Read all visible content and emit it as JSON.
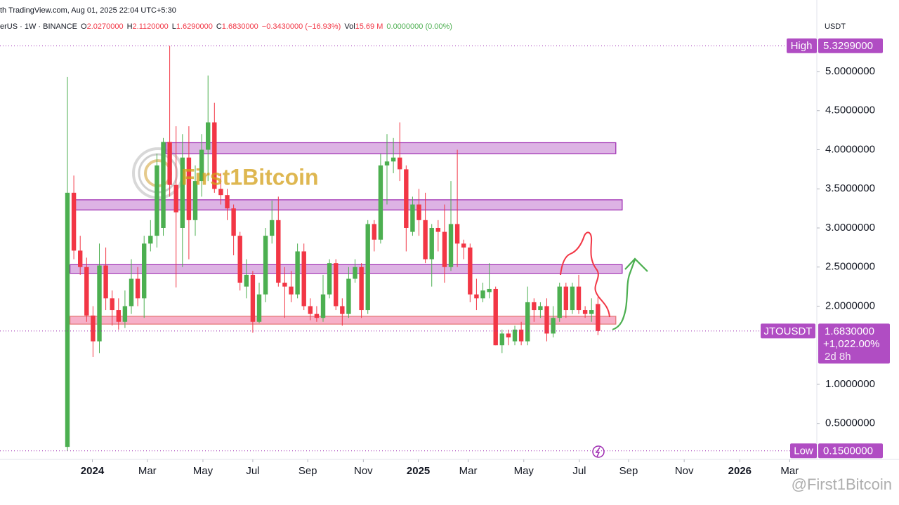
{
  "chart_data": {
    "type": "candlestick",
    "source": "th TradingView.com, Aug 01, 2025 22:04 UTC+5:30",
    "symbol": "erUS · 1W · BINANCE",
    "legend_items": [
      [
        "O",
        "2.0270000"
      ],
      [
        "H",
        "2.1120000"
      ],
      [
        "L",
        "1.6290000"
      ],
      [
        "C",
        "1.6830000"
      ],
      [
        "",
        "−0.3430000 (−16.93%)"
      ],
      [
        "Vol",
        "15.69 M"
      ],
      [
        "",
        "0.0000000 (0.00%)"
      ]
    ],
    "currency": "USDT",
    "watermark": "First1Bitcoin",
    "credit": "@First1Bitcoin",
    "up_color": "#4caf50",
    "down_color": "#f23645",
    "grid": false,
    "open": [
      0.2,
      3.45,
      2.71,
      2.5,
      1.88,
      1.55,
      2.52,
      2.1,
      1.95,
      1.8,
      2.0,
      2.35,
      2.1,
      2.8,
      2.9,
      3.0,
      4.1,
      3.55,
      3.0,
      3.9,
      3.1,
      3.6,
      4.0,
      4.35,
      3.5,
      3.42,
      3.25,
      2.9,
      2.25,
      2.4,
      1.8,
      2.15,
      2.9,
      3.1,
      2.3,
      2.25,
      2.15,
      2.7,
      2.0,
      1.9,
      1.85,
      2.15,
      2.55,
      2.0,
      1.9,
      2.35,
      2.5,
      1.95,
      3.05,
      2.85,
      3.8,
      3.85,
      3.9,
      3.75,
      2.95,
      3.3,
      3.1,
      2.6,
      3.0,
      2.95,
      2.5,
      3.05,
      2.8,
      2.75,
      2.15,
      2.1,
      2.18,
      2.22,
      1.5,
      1.65,
      1.55,
      1.7,
      1.55,
      2.05,
      1.95,
      2.0,
      1.65,
      1.85,
      2.25,
      1.95,
      2.25,
      1.95,
      1.9,
      2.027
    ],
    "high": [
      4.93,
      3.67,
      2.9,
      2.62,
      2.0,
      2.8,
      2.75,
      2.2,
      2.1,
      2.2,
      2.6,
      2.5,
      2.9,
      3.1,
      3.95,
      4.15,
      5.3299,
      4.3,
      4.2,
      4.3,
      3.8,
      4.2,
      4.95,
      4.6,
      3.7,
      3.5,
      3.3,
      2.95,
      2.6,
      2.45,
      2.3,
      3.0,
      3.35,
      3.4,
      2.5,
      2.45,
      2.8,
      2.8,
      2.1,
      2.0,
      2.4,
      2.6,
      2.6,
      2.1,
      2.5,
      2.6,
      2.55,
      3.1,
      3.1,
      3.95,
      4.2,
      4.15,
      4.35,
      3.8,
      3.4,
      3.5,
      3.45,
      3.05,
      3.1,
      3.3,
      3.6,
      4.0,
      2.85,
      2.8,
      2.35,
      2.3,
      2.55,
      2.25,
      1.7,
      1.7,
      1.75,
      1.8,
      2.25,
      2.1,
      2.05,
      2.1,
      2.0,
      2.3,
      2.3,
      2.3,
      2.4,
      2.0,
      2.1,
      2.112
    ],
    "low": [
      0.15,
      2.6,
      2.4,
      1.8,
      1.35,
      1.4,
      1.95,
      1.75,
      1.7,
      1.72,
      1.9,
      2.0,
      1.85,
      2.7,
      2.75,
      2.9,
      3.4,
      2.24,
      2.5,
      2.6,
      2.9,
      3.4,
      3.6,
      3.45,
      3.3,
      3.1,
      2.65,
      2.2,
      2.1,
      1.66,
      1.78,
      2.05,
      2.8,
      2.25,
      1.85,
      2.05,
      2.1,
      1.95,
      1.82,
      1.8,
      1.8,
      2.1,
      1.95,
      1.75,
      1.85,
      2.3,
      1.85,
      1.9,
      2.7,
      2.8,
      3.3,
      3.7,
      3.6,
      2.7,
      2.9,
      2.9,
      2.55,
      2.25,
      2.7,
      2.3,
      2.45,
      2.5,
      2.6,
      2.05,
      1.95,
      2.05,
      2.1,
      1.5,
      1.4,
      1.5,
      1.5,
      1.5,
      1.5,
      1.8,
      1.85,
      1.55,
      1.6,
      1.8,
      1.85,
      1.9,
      1.9,
      1.85,
      1.8,
      1.629
    ],
    "close": [
      3.45,
      2.71,
      2.5,
      1.88,
      1.55,
      2.52,
      2.1,
      1.95,
      1.8,
      2.0,
      2.35,
      2.1,
      2.8,
      2.9,
      3.8,
      4.1,
      3.55,
      3.2,
      3.9,
      3.1,
      3.6,
      4.0,
      4.35,
      3.5,
      3.42,
      3.25,
      2.9,
      2.3,
      2.4,
      1.8,
      2.15,
      2.9,
      3.1,
      2.3,
      2.25,
      2.15,
      2.7,
      2.0,
      1.9,
      1.85,
      2.15,
      2.55,
      2.0,
      1.9,
      2.35,
      2.5,
      1.95,
      3.05,
      2.85,
      3.8,
      3.85,
      3.9,
      3.75,
      3.0,
      3.3,
      3.1,
      2.6,
      3.0,
      2.95,
      2.5,
      3.05,
      2.8,
      2.75,
      2.15,
      2.1,
      2.2,
      2.22,
      1.5,
      1.65,
      1.6,
      1.7,
      1.55,
      2.05,
      1.95,
      2.0,
      1.65,
      1.85,
      2.25,
      1.95,
      2.25,
      1.95,
      1.9,
      1.95,
      1.683
    ],
    "xlim": [
      -10.55,
      117.25
    ],
    "xticks": [
      {
        "value": 3.9,
        "label": "2024"
      },
      {
        "value": 12.5,
        "label": "Mar"
      },
      {
        "value": 21.2,
        "label": "May"
      },
      {
        "value": 29.0,
        "label": "Jul"
      },
      {
        "value": 37.6,
        "label": "Sep"
      },
      {
        "value": 46.3,
        "label": "Nov"
      },
      {
        "value": 54.9,
        "label": "2025"
      },
      {
        "value": 62.7,
        "label": "Mar"
      },
      {
        "value": 71.4,
        "label": "May"
      },
      {
        "value": 80.1,
        "label": "Jul"
      },
      {
        "value": 87.8,
        "label": "Sep"
      },
      {
        "value": 96.5,
        "label": "Nov"
      },
      {
        "value": 105.2,
        "label": "2026"
      },
      {
        "value": 113.0,
        "label": "Mar"
      }
    ],
    "ylim": [
      0.04,
      5.915
    ],
    "yticks": [
      {
        "value": 5,
        "label": "5.0000000"
      },
      {
        "value": 4.5,
        "label": "4.5000000"
      },
      {
        "value": 4,
        "label": "4.0000000"
      },
      {
        "value": 3.5,
        "label": "3.5000000"
      },
      {
        "value": 3,
        "label": "3.0000000"
      },
      {
        "value": 2.5,
        "label": "2.5000000"
      },
      {
        "value": 2,
        "label": "2.0000000"
      },
      {
        "value": 1,
        "label": "1.0000000"
      },
      {
        "value": 0.5,
        "label": "0.5000000"
      }
    ],
    "zones": [
      {
        "from": 15.4,
        "to": 85.8,
        "low": 3.95,
        "high": 4.09,
        "color": "#ce93d8"
      },
      {
        "from": 1.2,
        "to": 86.8,
        "low": 3.23,
        "high": 3.36,
        "color": "#ce93d8"
      },
      {
        "from": 0.4,
        "to": 86.8,
        "low": 2.42,
        "high": 2.53,
        "color": "#ce93d8"
      },
      {
        "from": 0.4,
        "to": 85.8,
        "low": 1.77,
        "high": 1.87,
        "color": "#f48fb1"
      }
    ],
    "high_marker": {
      "name": "High",
      "value": 5.3299,
      "label": "5.3299000"
    },
    "low_marker": {
      "name": "Low",
      "value": 0.15,
      "label": "0.1500000"
    },
    "last_marker": {
      "name": "JTOUSDT",
      "value": 1.683,
      "label": "1.6830000",
      "change": "+1,022.00%",
      "countdown": "2d 8h"
    }
  }
}
